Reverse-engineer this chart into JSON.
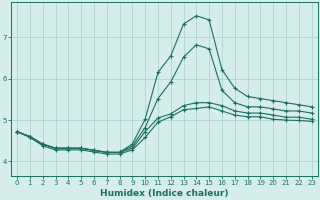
{
  "xlabel": "Humidex (Indice chaleur)",
  "bg_color": "#d5eeec",
  "grid_color": "#afd4d0",
  "line_color": "#1a6e62",
  "xlim": [
    -0.5,
    23.5
  ],
  "ylim": [
    3.65,
    7.85
  ],
  "xticks": [
    0,
    1,
    2,
    3,
    4,
    5,
    6,
    7,
    8,
    9,
    10,
    11,
    12,
    13,
    14,
    15,
    16,
    17,
    18,
    19,
    20,
    21,
    22,
    23
  ],
  "yticks": [
    4,
    5,
    6,
    7
  ],
  "line1_x": [
    0,
    1,
    2,
    3,
    4,
    5,
    6,
    7,
    8,
    9,
    10,
    11,
    12,
    13,
    14,
    15,
    16,
    17,
    18,
    19,
    20,
    21,
    22,
    23
  ],
  "line1_y": [
    4.72,
    4.6,
    4.42,
    4.32,
    4.32,
    4.32,
    4.27,
    4.22,
    4.22,
    4.32,
    4.72,
    5.05,
    5.15,
    5.35,
    5.42,
    5.42,
    5.35,
    5.22,
    5.17,
    5.17,
    5.12,
    5.07,
    5.07,
    5.02
  ],
  "line2_x": [
    0,
    1,
    2,
    3,
    4,
    5,
    6,
    7,
    8,
    9,
    10,
    11,
    12,
    13,
    14,
    15,
    16,
    17,
    18,
    19,
    20,
    21,
    22,
    23
  ],
  "line2_y": [
    4.72,
    4.58,
    4.38,
    4.28,
    4.28,
    4.28,
    4.23,
    4.18,
    4.18,
    4.28,
    4.58,
    4.95,
    5.08,
    5.25,
    5.28,
    5.32,
    5.22,
    5.12,
    5.08,
    5.08,
    5.02,
    5.0,
    4.99,
    4.97
  ],
  "line3_x": [
    0,
    1,
    2,
    3,
    4,
    5,
    6,
    7,
    8,
    9,
    10,
    11,
    12,
    13,
    14,
    15,
    16,
    17,
    18,
    19,
    20,
    21,
    22,
    23
  ],
  "line3_y": [
    4.72,
    4.6,
    4.42,
    4.32,
    4.32,
    4.32,
    4.27,
    4.22,
    4.22,
    4.42,
    5.02,
    6.15,
    6.55,
    7.32,
    7.52,
    7.42,
    6.22,
    5.77,
    5.57,
    5.52,
    5.47,
    5.42,
    5.37,
    5.32
  ],
  "line4_x": [
    0,
    1,
    2,
    3,
    4,
    5,
    6,
    7,
    8,
    9,
    10,
    11,
    12,
    13,
    14,
    15,
    16,
    17,
    18,
    19,
    20,
    21,
    22,
    23
  ],
  "line4_y": [
    4.72,
    4.6,
    4.42,
    4.32,
    4.32,
    4.32,
    4.27,
    4.22,
    4.22,
    4.37,
    4.82,
    5.52,
    5.92,
    6.52,
    6.82,
    6.72,
    5.72,
    5.42,
    5.32,
    5.32,
    5.27,
    5.22,
    5.22,
    5.17
  ]
}
